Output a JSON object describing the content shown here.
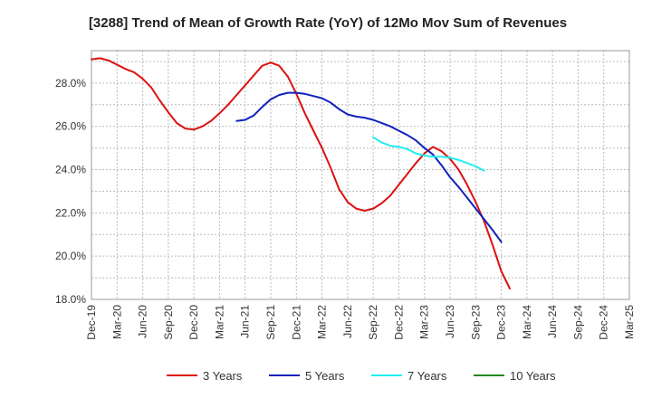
{
  "chart_data": {
    "type": "line",
    "title": "[3288]  Trend of Mean of Growth Rate (YoY) of 12Mo Mov Sum of Revenues",
    "xlabel": "",
    "ylabel": "",
    "ylim": [
      18.0,
      29.5
    ],
    "y_ticks": [
      "18.0%",
      "20.0%",
      "22.0%",
      "24.0%",
      "26.0%",
      "28.0%"
    ],
    "x_ticks": [
      "Dec-19",
      "Mar-20",
      "Jun-20",
      "Sep-20",
      "Dec-20",
      "Mar-21",
      "Jun-21",
      "Sep-21",
      "Dec-21",
      "Mar-22",
      "Jun-22",
      "Sep-22",
      "Dec-22",
      "Mar-23",
      "Jun-23",
      "Sep-23",
      "Dec-23",
      "Mar-24",
      "Jun-24",
      "Sep-24",
      "Dec-24",
      "Mar-25"
    ],
    "grid": true,
    "legend_position": "bottom",
    "series": [
      {
        "name": "3 Years",
        "color": "#dd1111",
        "points": [
          [
            0,
            29.1
          ],
          [
            1,
            29.15
          ],
          [
            2,
            29.05
          ],
          [
            3,
            28.85
          ],
          [
            4,
            28.65
          ],
          [
            5,
            28.5
          ],
          [
            6,
            28.2
          ],
          [
            7,
            27.8
          ],
          [
            8,
            27.2
          ],
          [
            9,
            26.65
          ],
          [
            10,
            26.15
          ],
          [
            11,
            25.9
          ],
          [
            12,
            25.85
          ],
          [
            13,
            26.0
          ],
          [
            14,
            26.25
          ],
          [
            15,
            26.6
          ],
          [
            16,
            27.0
          ],
          [
            17,
            27.45
          ],
          [
            18,
            27.9
          ],
          [
            19,
            28.35
          ],
          [
            20,
            28.8
          ],
          [
            21,
            28.95
          ],
          [
            22,
            28.8
          ],
          [
            23,
            28.3
          ],
          [
            24,
            27.5
          ],
          [
            25,
            26.6
          ],
          [
            26,
            25.8
          ],
          [
            27,
            25.0
          ],
          [
            28,
            24.1
          ],
          [
            29,
            23.1
          ],
          [
            30,
            22.5
          ],
          [
            31,
            22.2
          ],
          [
            32,
            22.1
          ],
          [
            33,
            22.2
          ],
          [
            34,
            22.45
          ],
          [
            35,
            22.8
          ],
          [
            36,
            23.3
          ],
          [
            37,
            23.8
          ],
          [
            38,
            24.3
          ],
          [
            39,
            24.75
          ],
          [
            40,
            25.05
          ],
          [
            41,
            24.85
          ],
          [
            42,
            24.5
          ],
          [
            43,
            24.0
          ],
          [
            44,
            23.3
          ],
          [
            45,
            22.5
          ],
          [
            46,
            21.6
          ],
          [
            47,
            20.5
          ],
          [
            48,
            19.3
          ],
          [
            49,
            18.5
          ]
        ]
      },
      {
        "name": "5 Years",
        "color": "#1122bb",
        "points": [
          [
            17,
            26.25
          ],
          [
            18,
            26.3
          ],
          [
            19,
            26.5
          ],
          [
            20,
            26.9
          ],
          [
            21,
            27.25
          ],
          [
            22,
            27.45
          ],
          [
            23,
            27.55
          ],
          [
            24,
            27.55
          ],
          [
            25,
            27.5
          ],
          [
            26,
            27.4
          ],
          [
            27,
            27.3
          ],
          [
            28,
            27.1
          ],
          [
            29,
            26.8
          ],
          [
            30,
            26.55
          ],
          [
            31,
            26.45
          ],
          [
            32,
            26.4
          ],
          [
            33,
            26.3
          ],
          [
            34,
            26.15
          ],
          [
            35,
            26.0
          ],
          [
            36,
            25.8
          ],
          [
            37,
            25.6
          ],
          [
            38,
            25.35
          ],
          [
            39,
            25.0
          ],
          [
            40,
            24.7
          ],
          [
            41,
            24.2
          ],
          [
            42,
            23.65
          ],
          [
            43,
            23.2
          ],
          [
            44,
            22.7
          ],
          [
            45,
            22.2
          ],
          [
            46,
            21.7
          ],
          [
            47,
            21.2
          ],
          [
            48,
            20.65
          ]
        ]
      },
      {
        "name": "7 Years",
        "color": "#22eeee",
        "points": [
          [
            33,
            25.5
          ],
          [
            34,
            25.25
          ],
          [
            35,
            25.1
          ],
          [
            36,
            25.05
          ],
          [
            37,
            24.95
          ],
          [
            38,
            24.75
          ],
          [
            39,
            24.65
          ],
          [
            40,
            24.6
          ],
          [
            41,
            24.6
          ],
          [
            42,
            24.55
          ],
          [
            43,
            24.45
          ],
          [
            44,
            24.3
          ],
          [
            45,
            24.15
          ],
          [
            46,
            23.95
          ]
        ]
      },
      {
        "name": "10 Years",
        "color": "#228822",
        "points": []
      }
    ]
  }
}
